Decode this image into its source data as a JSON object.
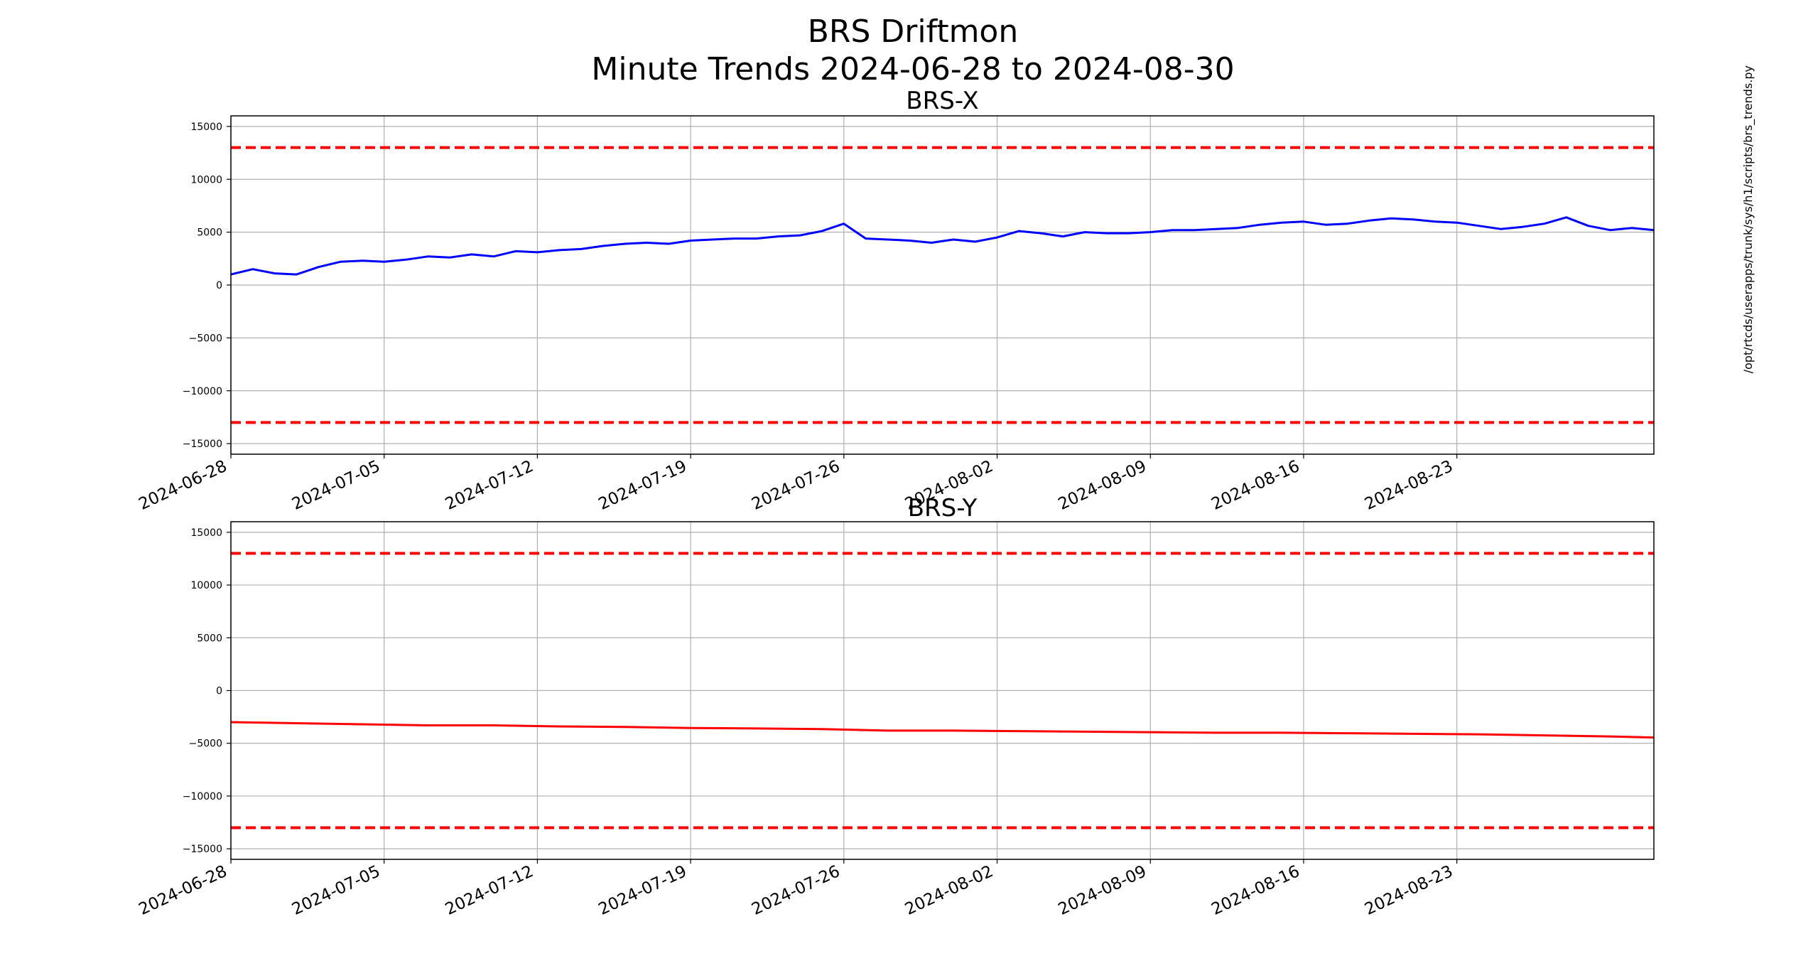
{
  "title_line1": "BRS Driftmon",
  "title_line2": "Minute Trends 2024-06-28  to 2024-08-30",
  "side_note": "/opt/rtcds/userapps/trunk/sys/h1/scripts/brs_trends.py",
  "chart_data": [
    {
      "type": "line",
      "title": "BRS-X",
      "xlim": [
        "2024-06-28",
        "2024-09-01"
      ],
      "ylim": [
        -16000,
        16000
      ],
      "yticks": [
        15000,
        10000,
        5000,
        0,
        -5000,
        -10000,
        -15000
      ],
      "xticks": [
        "2024-06-28",
        "2024-07-05",
        "2024-07-12",
        "2024-07-19",
        "2024-07-26",
        "2024-08-02",
        "2024-08-09",
        "2024-08-16",
        "2024-08-23"
      ],
      "grid": true,
      "series": [
        {
          "color": "#0000ff",
          "x": [
            "2024-06-28",
            "2024-06-29",
            "2024-06-30",
            "2024-07-01",
            "2024-07-02",
            "2024-07-03",
            "2024-07-04",
            "2024-07-05",
            "2024-07-06",
            "2024-07-07",
            "2024-07-08",
            "2024-07-09",
            "2024-07-10",
            "2024-07-11",
            "2024-07-12",
            "2024-07-13",
            "2024-07-14",
            "2024-07-15",
            "2024-07-16",
            "2024-07-17",
            "2024-07-18",
            "2024-07-19",
            "2024-07-20",
            "2024-07-21",
            "2024-07-22",
            "2024-07-23",
            "2024-07-24",
            "2024-07-25",
            "2024-07-26",
            "2024-07-27",
            "2024-07-28",
            "2024-07-29",
            "2024-07-30",
            "2024-07-31",
            "2024-08-01",
            "2024-08-02",
            "2024-08-03",
            "2024-08-04",
            "2024-08-05",
            "2024-08-06",
            "2024-08-07",
            "2024-08-08",
            "2024-08-09",
            "2024-08-10",
            "2024-08-11",
            "2024-08-12",
            "2024-08-13",
            "2024-08-14",
            "2024-08-15",
            "2024-08-16",
            "2024-08-17",
            "2024-08-18",
            "2024-08-19",
            "2024-08-20",
            "2024-08-21",
            "2024-08-22",
            "2024-08-23",
            "2024-08-24",
            "2024-08-25",
            "2024-08-26",
            "2024-08-27",
            "2024-08-28",
            "2024-08-29",
            "2024-08-30",
            "2024-08-31",
            "2024-09-01"
          ],
          "y": [
            1000,
            1500,
            1100,
            1000,
            1700,
            2200,
            2300,
            2200,
            2400,
            2700,
            2600,
            2900,
            2700,
            3200,
            3100,
            3300,
            3400,
            3700,
            3900,
            4000,
            3900,
            4200,
            4300,
            4400,
            4400,
            4600,
            4700,
            5100,
            5800,
            4400,
            4300,
            4200,
            4000,
            4300,
            4100,
            4500,
            5100,
            4900,
            4600,
            5000,
            4900,
            4900,
            5000,
            5200,
            5200,
            5300,
            5400,
            5700,
            5900,
            6000,
            5700,
            5800,
            6100,
            6300,
            6200,
            6000,
            5900,
            5600,
            5300,
            5500,
            5800,
            6400,
            5600,
            5200,
            5400,
            5200
          ]
        }
      ],
      "thresholds": [
        13000,
        -13000
      ],
      "threshold_color": "#ff0000"
    },
    {
      "type": "line",
      "title": "BRS-Y",
      "xlim": [
        "2024-06-28",
        "2024-09-01"
      ],
      "ylim": [
        -16000,
        16000
      ],
      "yticks": [
        15000,
        10000,
        5000,
        0,
        -5000,
        -10000,
        -15000
      ],
      "xticks": [
        "2024-06-28",
        "2024-07-05",
        "2024-07-12",
        "2024-07-19",
        "2024-07-26",
        "2024-08-02",
        "2024-08-09",
        "2024-08-16",
        "2024-08-23"
      ],
      "grid": true,
      "series": [
        {
          "color": "#ff0000",
          "x": [
            "2024-06-28",
            "2024-07-01",
            "2024-07-04",
            "2024-07-07",
            "2024-07-10",
            "2024-07-13",
            "2024-07-16",
            "2024-07-19",
            "2024-07-22",
            "2024-07-25",
            "2024-07-28",
            "2024-07-31",
            "2024-08-03",
            "2024-08-06",
            "2024-08-09",
            "2024-08-12",
            "2024-08-15",
            "2024-08-18",
            "2024-08-21",
            "2024-08-24",
            "2024-08-27",
            "2024-08-30",
            "2024-09-01"
          ],
          "y": [
            -3000,
            -3100,
            -3200,
            -3300,
            -3300,
            -3400,
            -3450,
            -3550,
            -3600,
            -3650,
            -3800,
            -3800,
            -3850,
            -3900,
            -3950,
            -4000,
            -4000,
            -4050,
            -4100,
            -4150,
            -4250,
            -4350,
            -4450
          ]
        }
      ],
      "thresholds": [
        13000,
        -13000
      ],
      "threshold_color": "#ff0000"
    }
  ]
}
